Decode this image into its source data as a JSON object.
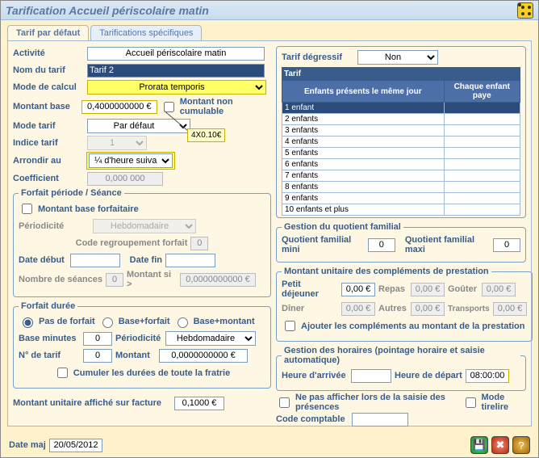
{
  "window": {
    "title": "Tarification Accueil périscolaire matin"
  },
  "tabs": {
    "default": "Tarif par défaut",
    "specific": "Tarifications spécifiques"
  },
  "left": {
    "activite_lbl": "Activité",
    "activite_val": "Accueil périscolaire matin",
    "nom_lbl": "Nom du tarif",
    "nom_val": "Tarif 2",
    "mode_calcul_lbl": "Mode de calcul",
    "mode_calcul_val": "Prorata temporis",
    "montant_base_lbl": "Montant base",
    "montant_base_val": "0,4000000000 €",
    "non_cumulable_lbl": "Montant non cumulable",
    "mode_tarif_lbl": "Mode tarif",
    "mode_tarif_val": "Par défaut",
    "indice_lbl": "Indice tarif",
    "indice_val": "1",
    "arrondir_lbl": "Arrondir au",
    "arrondir_val": "¼ d'heure suivant",
    "coef_lbl": "Coefficient",
    "coef_val": "0,000 000",
    "annot": "4X0.10€"
  },
  "forfait_periode": {
    "legend": "Forfait période / Séance",
    "base_forf_lbl": "Montant base forfaitaire",
    "periodicite_lbl": "Périodicité",
    "periodicite_val": "Hebdomadaire",
    "code_regroup_lbl": "Code regroupement forfait",
    "code_regroup_val": "0",
    "debut_lbl": "Date début",
    "debut_val": "",
    "fin_lbl": "Date fin",
    "fin_val": "",
    "nb_seances_lbl": "Nombre de séances",
    "nb_seances_val": "0",
    "montant_si_lbl": "Montant si >",
    "montant_si_val": "0,0000000000 €"
  },
  "forfait_duree": {
    "legend": "Forfait durée",
    "r1": "Pas de forfait",
    "r2": "Base+forfait",
    "r3": "Base+montant",
    "base_min_lbl": "Base minutes",
    "base_min_val": "0",
    "periodicite_lbl": "Périodicité",
    "periodicite_val": "Hebdomadaire",
    "num_lbl": "N° de tarif",
    "num_val": "0",
    "montant_lbl": "Montant",
    "montant_val": "0,0000000000 €",
    "cumuler_lbl": "Cumuler les durées de toute la fratrie"
  },
  "left_bottom": {
    "montant_facture_lbl": "Montant unitaire affiché sur facture",
    "montant_facture_val": "0,1000 €"
  },
  "degressif": {
    "lbl": "Tarif dégressif",
    "val": "Non",
    "th_title": "Tarif",
    "th1": "Enfants présents le même jour",
    "th2": "Chaque enfant paye",
    "rows": [
      "1 enfant",
      "2 enfants",
      "3 enfants",
      "4 enfants",
      "5 enfants",
      "6 enfants",
      "7 enfants",
      "8 enfants",
      "9 enfants",
      "10 enfants et plus"
    ]
  },
  "quotient": {
    "legend": "Gestion du quotient familial",
    "mini_lbl": "Quotient familial mini",
    "mini_val": "0",
    "maxi_lbl": "Quotient familial maxi",
    "maxi_val": "0"
  },
  "complements": {
    "legend": "Montant unitaire des compléments de prestation",
    "petit_lbl": "Petit déjeuner",
    "petit_val": "0,00 €",
    "repas_lbl": "Repas",
    "repas_val": "0,00 €",
    "gouter_lbl": "Goûter",
    "gouter_val": "0,00 €",
    "diner_lbl": "Dîner",
    "diner_val": "0,00 €",
    "autres_lbl": "Autres",
    "autres_val": "0,00 €",
    "transports_lbl": "Transports",
    "transports_val": "0,00 €",
    "ajouter_lbl": "Ajouter les compléments au montant de la prestation"
  },
  "horaires": {
    "legend": "Gestion des horaires (pointage horaire et saisie automatique)",
    "arrivee_lbl": "Heure d'arrivée",
    "arrivee_val": "",
    "depart_lbl": "Heure de départ",
    "depart_val": "08:00:00"
  },
  "right_bottom": {
    "ne_pas_aff_lbl": "Ne pas afficher lors de la saisie des présences",
    "tirelire_lbl": "Mode tirelire",
    "code_comptable_lbl": "Code comptable",
    "code_comptable_val": ""
  },
  "footer": {
    "date_maj_lbl": "Date maj",
    "date_maj_val": "20/05/2012"
  }
}
